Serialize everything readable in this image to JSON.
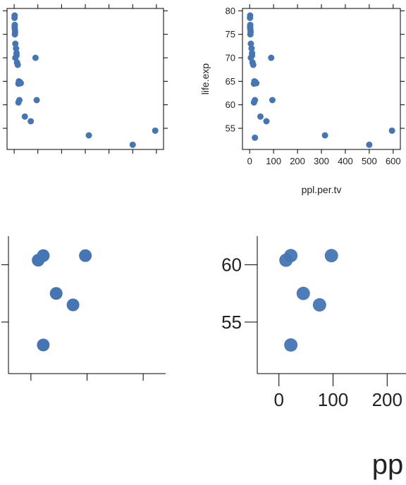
{
  "colors": {
    "point": "#4575b4",
    "frame": "#000000",
    "text": "#222222"
  },
  "chart_data": [
    {
      "panel": "top-left",
      "type": "scatter",
      "xlabel": "",
      "ylabel": "",
      "xlim": [
        -30,
        630
      ],
      "ylim": [
        50.5,
        80.5
      ],
      "xticks": [
        0,
        100,
        200,
        300,
        400,
        500,
        600
      ],
      "yticks": [
        55,
        60,
        65,
        70,
        75,
        80
      ],
      "xticklabels": [],
      "yticklabels": [],
      "x": [
        2,
        1.5,
        2.5,
        2,
        3,
        4,
        3,
        5,
        8,
        10,
        10,
        5,
        12,
        15,
        20,
        18,
        25,
        28,
        18,
        22,
        90,
        45,
        95,
        70,
        315,
        500,
        595
      ],
      "y": [
        79,
        78.5,
        77,
        76.5,
        76,
        75.5,
        75,
        73,
        72,
        71,
        70.5,
        70,
        69,
        68.5,
        65,
        64.5,
        64.8,
        64.6,
        60.5,
        61,
        70,
        57.5,
        61,
        56.5,
        53.5,
        51.5,
        54.5
      ]
    },
    {
      "panel": "top-right",
      "type": "scatter",
      "xlabel": "ppl.per.tv",
      "ylabel": "life.exp",
      "xlim": [
        -30,
        630
      ],
      "ylim": [
        50.5,
        80.5
      ],
      "xticks": [
        0,
        100,
        200,
        300,
        400,
        500,
        600
      ],
      "xticklabels": [
        "0",
        "100",
        "200",
        "300",
        "400",
        "500",
        "600"
      ],
      "yticks": [
        55,
        60,
        65,
        70,
        75,
        80
      ],
      "yticklabels": [
        "55",
        "60",
        "65",
        "70",
        "75",
        "80"
      ],
      "x": [
        2,
        1.5,
        2.5,
        2,
        3,
        4,
        3,
        5,
        8,
        10,
        10,
        5,
        12,
        15,
        20,
        18,
        25,
        28,
        18,
        22,
        90,
        45,
        95,
        70,
        315,
        500,
        595,
        22
      ],
      "y": [
        79,
        78.5,
        77,
        76.5,
        76,
        75.5,
        75,
        73,
        72,
        71,
        70.5,
        70,
        69,
        68.5,
        65,
        64.5,
        64.8,
        64.6,
        60.5,
        61,
        70,
        57.5,
        61,
        56.5,
        53.5,
        51.5,
        54.5,
        53
      ]
    },
    {
      "panel": "bottom-left",
      "type": "scatter",
      "xlabel": "",
      "ylabel": "",
      "xlim": [
        -40,
        240
      ],
      "ylim": [
        50.5,
        62.5
      ],
      "xticks": [
        0,
        100,
        200
      ],
      "xticklabels": [],
      "yticks": [
        50,
        55,
        60
      ],
      "yticklabels": [],
      "x": [
        13,
        22,
        97,
        45,
        75,
        22
      ],
      "y": [
        60.4,
        60.8,
        60.8,
        57.5,
        56.5,
        53.0
      ]
    },
    {
      "panel": "bottom-right",
      "type": "scatter",
      "xlabel": "pp",
      "ylabel": "",
      "xlim": [
        -40,
        240
      ],
      "ylim": [
        50.5,
        62.5
      ],
      "xticks": [
        0,
        100,
        200
      ],
      "xticklabels": [
        "0",
        "100",
        "200"
      ],
      "yticks": [
        50,
        55,
        60
      ],
      "yticklabels": [
        "",
        "55",
        "60"
      ],
      "x": [
        13,
        22,
        97,
        45,
        75,
        22
      ],
      "y": [
        60.4,
        60.8,
        60.8,
        57.5,
        56.5,
        53.0
      ]
    }
  ]
}
